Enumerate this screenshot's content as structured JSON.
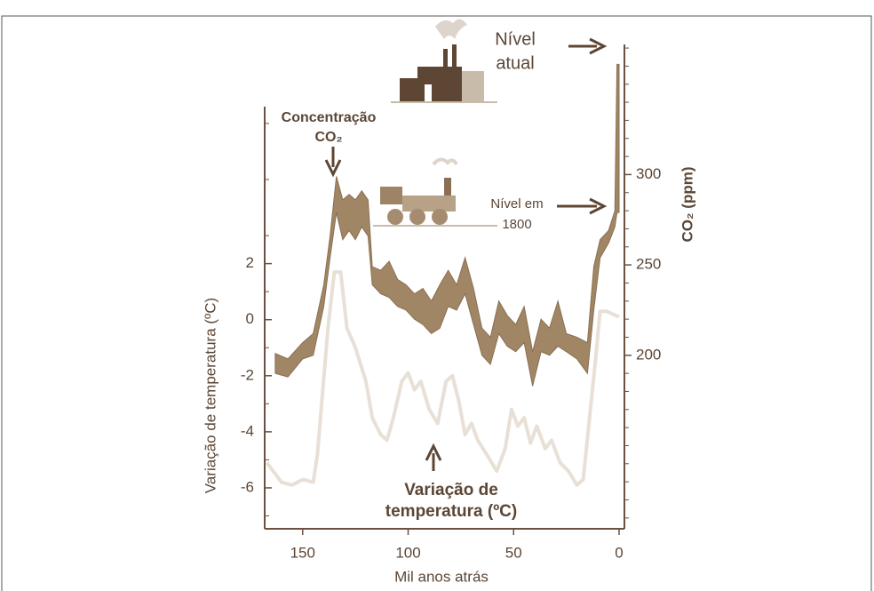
{
  "chart_data": {
    "type": "line",
    "xlabel": "Mil anos atrás",
    "ylabel": "Variação de temperatura (ºC)",
    "y2label": "CO₂ (ppm)",
    "xlim": [
      168,
      0
    ],
    "xticks": [
      150,
      100,
      50,
      0
    ],
    "ylim": [
      -7.46,
      7.6
    ],
    "yticks": [
      -6,
      -4,
      -2,
      0,
      2
    ],
    "yminorticks": [
      -7,
      -5,
      -3,
      -1,
      1,
      3,
      5,
      7
    ],
    "y2lim": [
      104,
      372
    ],
    "y2ticks": [
      200,
      250,
      300
    ],
    "y2minorticks": [
      110,
      120,
      130,
      140,
      150,
      160,
      170,
      180,
      190,
      210,
      220,
      230,
      240,
      260,
      270,
      280,
      290,
      310,
      320,
      330,
      340,
      350,
      360,
      370
    ],
    "annotations": [
      {
        "text": [
          "Nível",
          "atual"
        ]
      },
      {
        "text": [
          "Concentração",
          "CO₂"
        ]
      },
      {
        "text": [
          "Nível em",
          "1800"
        ]
      },
      {
        "text": [
          "Variação de",
          "temperatura (ºC)"
        ]
      }
    ],
    "series": [
      {
        "type": "line",
        "color": "#e8e0d6",
        "x": [
          167,
          160,
          155,
          150,
          145,
          143,
          138,
          135,
          132,
          129,
          125,
          120,
          117,
          113,
          110,
          107,
          103,
          100,
          97,
          94,
          90,
          86,
          82,
          79,
          76,
          73,
          70,
          67,
          62,
          58,
          54,
          51,
          48,
          45,
          42,
          39,
          35,
          32,
          28,
          24,
          20,
          17,
          14,
          11,
          9,
          6,
          3,
          0
        ],
        "values": [
          -5.1,
          -5.8,
          -5.9,
          -5.7,
          -5.8,
          -4.8,
          -0.3,
          1.7,
          1.7,
          -0.3,
          -1.0,
          -2.2,
          -3.5,
          -4.1,
          -4.3,
          -3.5,
          -2.2,
          -1.9,
          -2.5,
          -2.2,
          -3.2,
          -3.7,
          -2.2,
          -2.0,
          -2.9,
          -4.1,
          -3.7,
          -4.3,
          -4.9,
          -5.4,
          -4.6,
          -3.2,
          -3.8,
          -3.5,
          -4.4,
          -3.8,
          -4.6,
          -4.3,
          -5.1,
          -5.4,
          -5.9,
          -5.7,
          -3.5,
          -1.3,
          0.3,
          0.3,
          0.2,
          0.1
        ]
      },
      {
        "type": "band",
        "axis": "y2",
        "color": "#a08665",
        "x": [
          163,
          157,
          150,
          145,
          140,
          137,
          134,
          131,
          128,
          125,
          122,
          119,
          117,
          113,
          109,
          105,
          101,
          97,
          93,
          89,
          85,
          81,
          77,
          73,
          69,
          65,
          61,
          57,
          53,
          49,
          45,
          41,
          37,
          33,
          29,
          25,
          20,
          15,
          12,
          9,
          5,
          2,
          1,
          0
        ],
        "high": [
          201,
          198,
          207,
          212,
          239,
          266,
          299,
          286,
          289,
          286,
          291,
          286,
          249,
          247,
          252,
          242,
          239,
          234,
          237,
          230,
          239,
          247,
          239,
          254,
          237,
          215,
          210,
          230,
          222,
          217,
          227,
          202,
          220,
          215,
          230,
          212,
          210,
          207,
          249,
          264,
          269,
          280,
          361,
          361
        ],
        "low": [
          190,
          188,
          198,
          200,
          227,
          254,
          279,
          264,
          269,
          264,
          271,
          266,
          239,
          234,
          232,
          227,
          225,
          220,
          217,
          212,
          215,
          227,
          225,
          234,
          217,
          200,
          195,
          212,
          205,
          202,
          207,
          183,
          202,
          200,
          205,
          202,
          198,
          190,
          225,
          254,
          262,
          271,
          279,
          279
        ]
      }
    ]
  }
}
